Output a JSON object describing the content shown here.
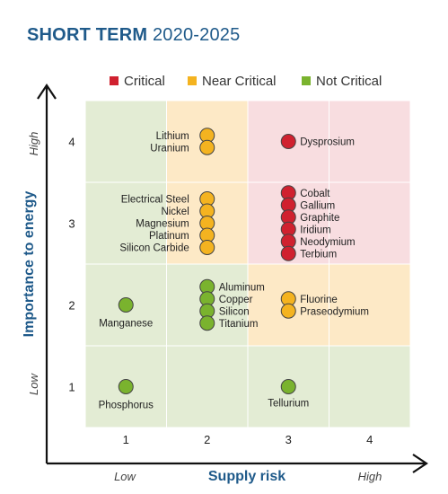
{
  "title": {
    "bold": "SHORT TERM",
    "light": "2020-2025"
  },
  "colors": {
    "critical": "#d0212f",
    "near_critical": "#f4b320",
    "not_critical": "#7ab32e",
    "zone_green": "#e3ecd4",
    "zone_yellow": "#fde9c6",
    "zone_red": "#f8dde0",
    "axis_title": "#1f5a8a"
  },
  "chart_data": {
    "type": "scatter",
    "xlabel": "Supply risk",
    "ylabel": "Importance to energy",
    "x_ticks": [
      "1",
      "2",
      "3",
      "4"
    ],
    "y_ticks": [
      "1",
      "2",
      "3",
      "4"
    ],
    "x_end_labels": {
      "low": "Low",
      "high": "High"
    },
    "y_end_labels": {
      "low": "Low",
      "high": "High"
    },
    "xlim": [
      0.5,
      4.5
    ],
    "ylim": [
      0.5,
      4.5
    ],
    "legend_position": "top",
    "legend": [
      {
        "key": "critical",
        "label": "Critical"
      },
      {
        "key": "near_critical",
        "label": "Near Critical"
      },
      {
        "key": "not_critical",
        "label": "Not Critical"
      }
    ],
    "zones": [
      {
        "x": 1,
        "y": 1,
        "level": "not_critical"
      },
      {
        "x": 2,
        "y": 1,
        "level": "not_critical"
      },
      {
        "x": 3,
        "y": 1,
        "level": "not_critical"
      },
      {
        "x": 4,
        "y": 1,
        "level": "not_critical"
      },
      {
        "x": 1,
        "y": 2,
        "level": "not_critical"
      },
      {
        "x": 2,
        "y": 2,
        "level": "not_critical"
      },
      {
        "x": 3,
        "y": 2,
        "level": "near_critical"
      },
      {
        "x": 4,
        "y": 2,
        "level": "near_critical"
      },
      {
        "x": 1,
        "y": 3,
        "level": "not_critical"
      },
      {
        "x": 2,
        "y": 3,
        "level": "near_critical"
      },
      {
        "x": 3,
        "y": 3,
        "level": "critical"
      },
      {
        "x": 4,
        "y": 3,
        "level": "critical"
      },
      {
        "x": 1,
        "y": 4,
        "level": "not_critical"
      },
      {
        "x": 2,
        "y": 4,
        "level": "near_critical"
      },
      {
        "x": 3,
        "y": 4,
        "level": "critical"
      },
      {
        "x": 4,
        "y": 4,
        "level": "critical"
      }
    ],
    "groups": [
      {
        "x": 1,
        "y": 1,
        "level": "not_critical",
        "materials": [
          "Phosphorus"
        ]
      },
      {
        "x": 3,
        "y": 1,
        "level": "not_critical",
        "materials": [
          "Tellurium"
        ]
      },
      {
        "x": 1,
        "y": 2,
        "level": "not_critical",
        "materials": [
          "Manganese"
        ]
      },
      {
        "x": 2,
        "y": 2,
        "level": "not_critical",
        "materials": [
          "Aluminum",
          "Copper",
          "Silicon",
          "Titanium"
        ]
      },
      {
        "x": 3,
        "y": 2,
        "level": "near_critical",
        "materials": [
          "Fluorine",
          "Praseodymium"
        ]
      },
      {
        "x": 2,
        "y": 3,
        "level": "near_critical",
        "materials": [
          "Electrical Steel",
          "Nickel",
          "Magnesium",
          "Platinum",
          "Silicon Carbide"
        ]
      },
      {
        "x": 3,
        "y": 3,
        "level": "critical",
        "materials": [
          "Cobalt",
          "Gallium",
          "Graphite",
          "Iridium",
          "Neodymium",
          "Terbium"
        ]
      },
      {
        "x": 2,
        "y": 4,
        "level": "near_critical",
        "materials": [
          "Lithium",
          "Uranium"
        ]
      },
      {
        "x": 3,
        "y": 4,
        "level": "critical",
        "materials": [
          "Dysprosium"
        ]
      }
    ]
  }
}
